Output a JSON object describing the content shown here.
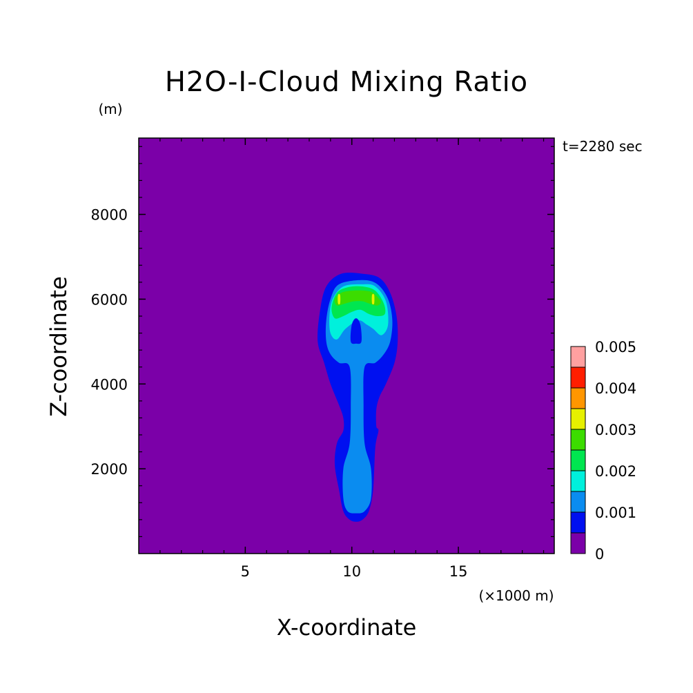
{
  "chart_data": {
    "type": "heatmap",
    "title": "H2O-I-Cloud Mixing Ratio",
    "xlabel": "X-coordinate",
    "ylabel": "Z-coordinate",
    "x_unit": "(×1000 m)",
    "y_unit": "(m)",
    "time_label": "t=2280 sec",
    "xlim": [
      0,
      19.5
    ],
    "ylim": [
      0,
      9800
    ],
    "x_ticks": [
      5,
      10,
      15
    ],
    "x_tick_labels": [
      "5",
      "10",
      "15"
    ],
    "y_ticks": [
      2000,
      4000,
      6000,
      8000
    ],
    "y_tick_labels": [
      "2000",
      "4000",
      "6000",
      "8000"
    ],
    "x_minor_step": 1,
    "y_minor_step": 400,
    "background_color": "#7b00a8",
    "levels": [
      0,
      0.0005,
      0.001,
      0.0015,
      0.002,
      0.0025,
      0.003,
      0.0035,
      0.004,
      0.0045,
      0.005
    ],
    "level_colors": [
      "#7b00a8",
      "#0010f0",
      "#0a8cf0",
      "#00f0dc",
      "#00e650",
      "#3cdc00",
      "#e6f000",
      "#ff9600",
      "#ff1e00",
      "#ffa0a0"
    ],
    "colorbar_labels": [
      "0",
      "0.001",
      "0.002",
      "0.003",
      "0.004",
      "0.005"
    ],
    "colorbar_label_values": [
      0,
      0.001,
      0.002,
      0.003,
      0.004,
      0.005
    ],
    "contours": [
      {
        "level": 0.0005,
        "color": "#0010f0",
        "points": [
          [
            10.5,
            6600
          ],
          [
            11.3,
            6500
          ],
          [
            11.8,
            6150
          ],
          [
            12.1,
            5600
          ],
          [
            12.15,
            5000
          ],
          [
            12.0,
            4500
          ],
          [
            11.6,
            4000
          ],
          [
            11.3,
            3700
          ],
          [
            11.15,
            3400
          ],
          [
            11.15,
            3000
          ],
          [
            11.25,
            2900
          ],
          [
            11.1,
            2500
          ],
          [
            11.0,
            1500
          ],
          [
            10.8,
            1000
          ],
          [
            10.5,
            800
          ],
          [
            10.2,
            750
          ],
          [
            9.9,
            800
          ],
          [
            9.6,
            1000
          ],
          [
            9.4,
            1500
          ],
          [
            9.2,
            2100
          ],
          [
            9.3,
            2600
          ],
          [
            9.6,
            2900
          ],
          [
            9.6,
            3200
          ],
          [
            9.4,
            3500
          ],
          [
            9.0,
            4000
          ],
          [
            8.7,
            4500
          ],
          [
            8.4,
            5000
          ],
          [
            8.5,
            5700
          ],
          [
            8.8,
            6300
          ],
          [
            9.5,
            6600
          ]
        ]
      },
      {
        "level": 0.001,
        "color": "#0a8cf0",
        "points": [
          [
            10.5,
            6450
          ],
          [
            11.2,
            6350
          ],
          [
            11.7,
            6000
          ],
          [
            11.9,
            5500
          ],
          [
            11.8,
            5000
          ],
          [
            11.5,
            4700
          ],
          [
            11.1,
            4500
          ],
          [
            10.6,
            4400
          ],
          [
            10.55,
            3500
          ],
          [
            10.6,
            2600
          ],
          [
            10.9,
            2000
          ],
          [
            10.9,
            1300
          ],
          [
            10.6,
            1000
          ],
          [
            10.2,
            950
          ],
          [
            9.8,
            1000
          ],
          [
            9.6,
            1300
          ],
          [
            9.6,
            2000
          ],
          [
            9.9,
            2600
          ],
          [
            9.95,
            3500
          ],
          [
            9.9,
            4400
          ],
          [
            9.4,
            4500
          ],
          [
            9.0,
            4700
          ],
          [
            8.8,
            5000
          ],
          [
            8.8,
            5500
          ],
          [
            9.0,
            6000
          ],
          [
            9.4,
            6350
          ]
        ]
      },
      {
        "level": 0.0015,
        "color": "#00f0dc",
        "points": [
          [
            10.5,
            6350
          ],
          [
            11.1,
            6300
          ],
          [
            11.6,
            5950
          ],
          [
            11.7,
            5400
          ],
          [
            11.4,
            5150
          ],
          [
            11.0,
            5300
          ],
          [
            10.7,
            5400
          ],
          [
            10.3,
            5500
          ],
          [
            9.7,
            5300
          ],
          [
            9.3,
            5050
          ],
          [
            9.0,
            5200
          ],
          [
            8.95,
            5600
          ],
          [
            9.1,
            6000
          ],
          [
            9.6,
            6300
          ]
        ]
      },
      {
        "level": 0.002,
        "color": "#00e650",
        "points": [
          [
            10.5,
            6300
          ],
          [
            11.1,
            6200
          ],
          [
            11.5,
            5900
          ],
          [
            11.55,
            5650
          ],
          [
            11.2,
            5600
          ],
          [
            10.8,
            5650
          ],
          [
            10.4,
            5750
          ],
          [
            10.0,
            5700
          ],
          [
            9.6,
            5600
          ],
          [
            9.2,
            5550
          ],
          [
            9.05,
            5800
          ],
          [
            9.3,
            6150
          ],
          [
            9.8,
            6280
          ]
        ]
      },
      {
        "level": 0.0025,
        "color": "#3cdc00",
        "points": [
          [
            10.6,
            6200
          ],
          [
            11.0,
            6150
          ],
          [
            11.35,
            5950
          ],
          [
            11.2,
            5850
          ],
          [
            10.8,
            5900
          ],
          [
            10.5,
            5950
          ],
          [
            10.1,
            5950
          ],
          [
            9.7,
            5900
          ],
          [
            9.3,
            5850
          ],
          [
            9.2,
            6000
          ],
          [
            9.5,
            6150
          ],
          [
            10.0,
            6200
          ]
        ]
      },
      {
        "level": 0.003,
        "color": "#e6f000",
        "points": [
          [
            9.35,
            6100
          ],
          [
            9.45,
            6100
          ],
          [
            9.45,
            5900
          ],
          [
            9.35,
            5900
          ]
        ]
      },
      {
        "level": 0.003,
        "color": "#e6f000",
        "points": [
          [
            10.95,
            6100
          ],
          [
            11.05,
            6100
          ],
          [
            11.05,
            5900
          ],
          [
            10.95,
            5900
          ]
        ]
      },
      {
        "level": 0.0005,
        "color": "#0010f0",
        "points": [
          [
            10.2,
            5550
          ],
          [
            10.4,
            5400
          ],
          [
            10.45,
            5000
          ],
          [
            10.2,
            4950
          ],
          [
            9.95,
            5000
          ],
          [
            10.0,
            5400
          ]
        ]
      }
    ]
  }
}
